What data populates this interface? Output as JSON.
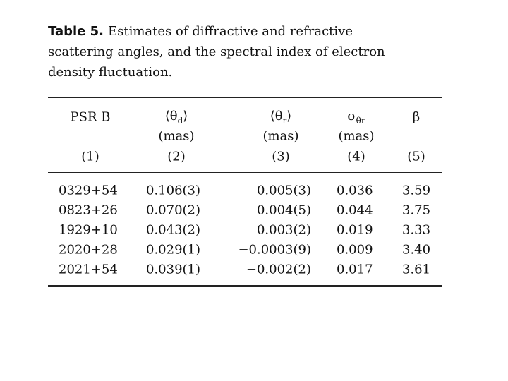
{
  "caption": {
    "label": "Table 5.",
    "text": "Estimates of diffractive and refractive scattering angles, and the spectral index of electron density fluctuation."
  },
  "table": {
    "header": [
      {
        "name": [
          "PSR B"
        ],
        "unit": null,
        "number": "(1)"
      },
      {
        "name": [
          "⟨θ",
          "d",
          "⟩"
        ],
        "unit": "(mas)",
        "number": "(2)"
      },
      {
        "name": [
          "⟨θ",
          "r",
          "⟩"
        ],
        "unit": "(mas)",
        "number": "(3)"
      },
      {
        "name": [
          "σ",
          "θr"
        ],
        "unit": "(mas)",
        "number": "(4)"
      },
      {
        "name": [
          "β"
        ],
        "unit": null,
        "number": "(5)"
      }
    ],
    "rows": [
      [
        "0329+54",
        "0.106(3)",
        "0.005(3)",
        "0.036",
        "3.59"
      ],
      [
        "0823+26",
        "0.070(2)",
        "0.004(5)",
        "0.044",
        "3.75"
      ],
      [
        "1929+10",
        "0.043(2)",
        "0.003(2)",
        "0.019",
        "3.33"
      ],
      [
        "2020+28",
        "0.029(1)",
        "−0.0003(9)",
        "0.009",
        "3.40"
      ],
      [
        "2021+54",
        "0.039(1)",
        "−0.002(2)",
        "0.017",
        "3.61"
      ]
    ]
  }
}
